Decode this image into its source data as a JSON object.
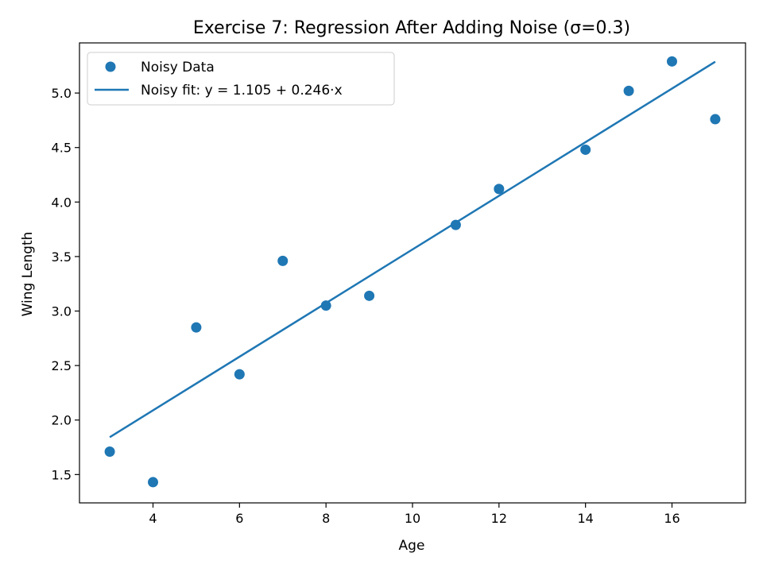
{
  "chart_data": {
    "type": "scatter",
    "title": "Exercise 7: Regression After Adding Noise (σ=0.3)",
    "xlabel": "Age",
    "ylabel": "Wing Length",
    "xlim": [
      2.3,
      17.7
    ],
    "ylim": [
      1.24,
      5.46
    ],
    "xticks": [
      4,
      6,
      8,
      10,
      12,
      14,
      16
    ],
    "yticks": [
      1.5,
      2.0,
      2.5,
      3.0,
      3.5,
      4.0,
      4.5,
      5.0
    ],
    "grid": false,
    "legend_position": "top-left",
    "series": [
      {
        "name": "Noisy Data",
        "kind": "scatter",
        "color": "#1f77b4",
        "x": [
          3,
          4,
          5,
          6,
          7,
          8,
          9,
          11,
          12,
          14,
          15,
          16,
          17
        ],
        "y": [
          1.71,
          1.43,
          2.85,
          2.42,
          3.46,
          3.05,
          3.14,
          3.79,
          4.12,
          4.48,
          5.02,
          5.29,
          4.76
        ]
      },
      {
        "name": "Noisy fit: y = 1.105 + 0.246·x",
        "kind": "line",
        "color": "#1f77b4",
        "intercept": 1.105,
        "slope": 0.246,
        "x_range": [
          3,
          17
        ]
      }
    ]
  }
}
